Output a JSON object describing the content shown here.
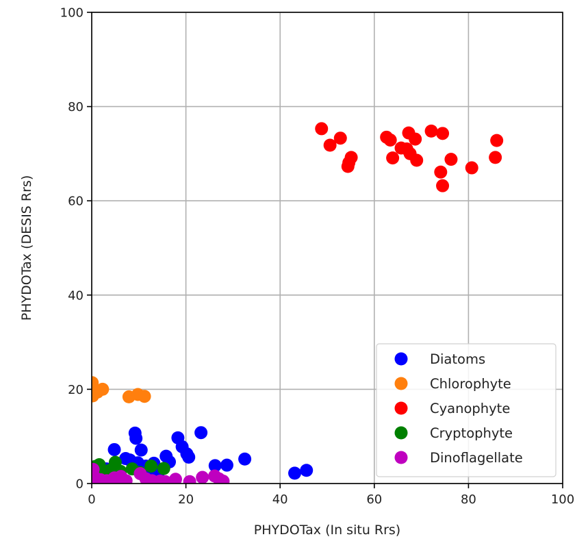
{
  "chart_data": {
    "type": "scatter",
    "xlabel": "PHYDOTax (In situ Rrs)",
    "ylabel": "PHYDOTax (DESIS Rrs)",
    "xlim": [
      0,
      100
    ],
    "ylim": [
      0,
      100
    ],
    "xticks": [
      "0",
      "20",
      "40",
      "60",
      "80",
      "100"
    ],
    "yticks": [
      "0",
      "20",
      "40",
      "60",
      "80",
      "100"
    ],
    "grid": true,
    "legend_position": "lower-right",
    "series": [
      {
        "name": "Diatoms",
        "color": "#0000ff",
        "points": [
          [
            4.8,
            7.2
          ],
          [
            9.2,
            10.7
          ],
          [
            9.4,
            9.6
          ],
          [
            10.5,
            7.1
          ],
          [
            7.2,
            5.3
          ],
          [
            8.1,
            5.0
          ],
          [
            9.8,
            4.4
          ],
          [
            11.5,
            3.7
          ],
          [
            13.2,
            4.3
          ],
          [
            15.8,
            5.8
          ],
          [
            16.5,
            4.6
          ],
          [
            18.3,
            9.7
          ],
          [
            19.2,
            7.8
          ],
          [
            20.2,
            6.3
          ],
          [
            20.6,
            5.6
          ],
          [
            23.2,
            10.8
          ],
          [
            26.2,
            3.8
          ],
          [
            28.7,
            3.9
          ],
          [
            32.5,
            5.2
          ],
          [
            43.1,
            2.2
          ],
          [
            45.6,
            2.8
          ],
          [
            12.7,
            2.6
          ],
          [
            14.1,
            2.2
          ],
          [
            3.1,
            3.1
          ]
        ]
      },
      {
        "name": "Chlorophyte",
        "color": "#ff7f0e",
        "points": [
          [
            0.1,
            21.4
          ],
          [
            0.2,
            18.6
          ],
          [
            1.2,
            19.4
          ],
          [
            2.3,
            20.0
          ],
          [
            7.9,
            18.4
          ],
          [
            9.8,
            18.9
          ],
          [
            11.2,
            18.5
          ]
        ]
      },
      {
        "name": "Cyanophyte",
        "color": "#ff0000",
        "points": [
          [
            48.8,
            75.3
          ],
          [
            50.6,
            71.8
          ],
          [
            52.8,
            73.3
          ],
          [
            54.4,
            67.3
          ],
          [
            54.6,
            68.1
          ],
          [
            55.1,
            69.2
          ],
          [
            62.6,
            73.5
          ],
          [
            63.4,
            72.9
          ],
          [
            63.9,
            69.1
          ],
          [
            65.7,
            71.2
          ],
          [
            66.9,
            71.0
          ],
          [
            67.3,
            74.4
          ],
          [
            67.6,
            70.0
          ],
          [
            68.7,
            73.1
          ],
          [
            69.0,
            68.6
          ],
          [
            72.1,
            74.8
          ],
          [
            74.1,
            66.1
          ],
          [
            74.5,
            74.3
          ],
          [
            74.5,
            63.2
          ],
          [
            76.3,
            68.8
          ],
          [
            80.7,
            67.0
          ],
          [
            85.7,
            69.2
          ],
          [
            86.0,
            72.8
          ]
        ]
      },
      {
        "name": "Cryptophyte",
        "color": "#008000",
        "points": [
          [
            0.7,
            3.6
          ],
          [
            1.6,
            4.0
          ],
          [
            3.8,
            2.8
          ],
          [
            5.0,
            4.5
          ],
          [
            6.1,
            2.6
          ],
          [
            8.6,
            3.1
          ],
          [
            10.3,
            2.3
          ],
          [
            12.6,
            3.7
          ],
          [
            15.3,
            3.2
          ],
          [
            2.6,
            2.0
          ]
        ]
      },
      {
        "name": "Dinoflagellate",
        "color": "#bf00bf",
        "points": [
          [
            0.3,
            3.0
          ],
          [
            0.5,
            1.5
          ],
          [
            0.9,
            0.6
          ],
          [
            1.9,
            0.8
          ],
          [
            3.2,
            0.6
          ],
          [
            4.8,
            1.2
          ],
          [
            6.2,
            1.5
          ],
          [
            6.6,
            0.7
          ],
          [
            7.3,
            0.6
          ],
          [
            10.3,
            2.1
          ],
          [
            11.5,
            1.0
          ],
          [
            12.8,
            0.6
          ],
          [
            14.5,
            0.5
          ],
          [
            15.6,
            0.4
          ],
          [
            17.8,
            0.9
          ],
          [
            20.8,
            0.4
          ],
          [
            23.5,
            1.3
          ],
          [
            26.1,
            1.6
          ],
          [
            27.0,
            1.0
          ],
          [
            27.9,
            0.5
          ]
        ]
      }
    ]
  }
}
